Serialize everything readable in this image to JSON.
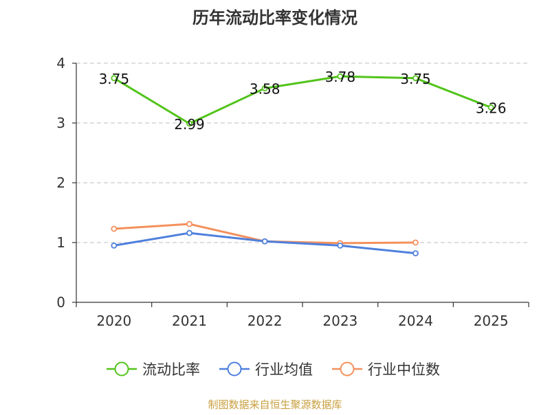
{
  "chart_data": {
    "type": "line",
    "title": "历年流动比率变化情况",
    "categories": [
      "2020",
      "2021",
      "2022",
      "2023",
      "2024",
      "2025"
    ],
    "ylim": [
      0,
      4
    ],
    "yticks": [
      "0",
      "1",
      "2",
      "3",
      "4"
    ],
    "grid": true,
    "legend_position": "bottom",
    "series": [
      {
        "name": "流动比率",
        "color": "#52c41a",
        "values": [
          3.75,
          2.99,
          3.58,
          3.78,
          3.75,
          3.26
        ],
        "labels": [
          "3.75",
          "2.99",
          "3.58",
          "3.78",
          "3.75",
          "3.26"
        ]
      },
      {
        "name": "行业均值",
        "color": "#4e7fdc",
        "values": [
          0.95,
          1.16,
          1.02,
          0.95,
          0.82,
          null
        ]
      },
      {
        "name": "行业中位数",
        "color": "#f4905c",
        "values": [
          1.23,
          1.31,
          1.02,
          0.99,
          1.0,
          null
        ]
      }
    ],
    "source": "制图数据来自恒生聚源数据库"
  }
}
